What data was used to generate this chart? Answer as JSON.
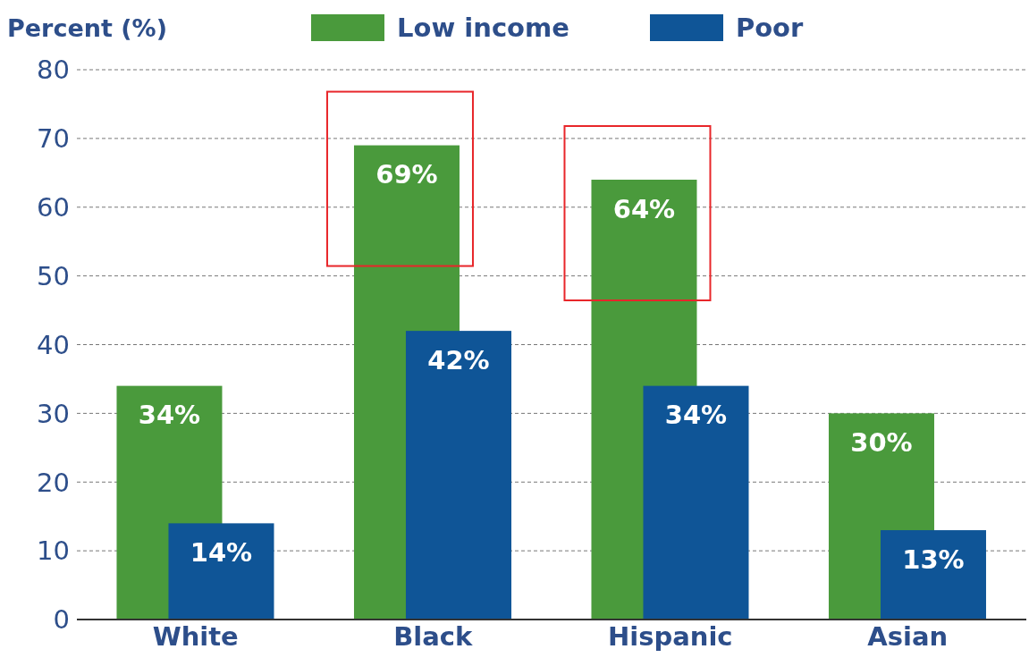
{
  "chart_data": {
    "type": "bar",
    "ylabel": "Percent (%)",
    "categories": [
      "White",
      "Black",
      "Hispanic",
      "Asian"
    ],
    "series": [
      {
        "name": "Low income",
        "color": "#4a9a3c",
        "values": [
          34,
          69,
          64,
          30
        ],
        "value_labels": [
          "34%",
          "69%",
          "64%",
          "30%"
        ]
      },
      {
        "name": "Poor",
        "color": "#0f5597",
        "values": [
          14,
          42,
          34,
          13
        ],
        "value_labels": [
          "14%",
          "42%",
          "34%",
          "13%"
        ]
      }
    ],
    "ylim": [
      0,
      80
    ],
    "yticks": [
      0,
      10,
      20,
      30,
      40,
      50,
      60,
      70,
      80
    ],
    "grid": "y",
    "legend": "top"
  }
}
